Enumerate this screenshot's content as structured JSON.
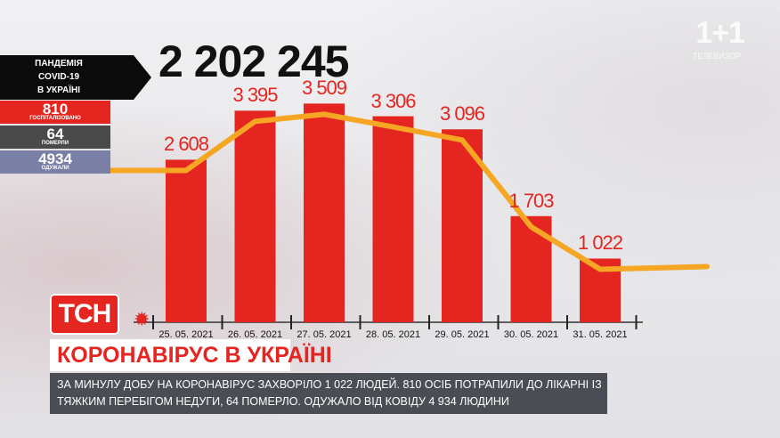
{
  "total_cases": "2 202 245",
  "logo": {
    "main": "1+1",
    "sub": "ТЕЛЕВИЗОР"
  },
  "panel": {
    "title_lines": [
      "ПАНДЕМІЯ",
      "COVID-19",
      "В УКРАЇНІ"
    ],
    "hospitalized": {
      "value": "810",
      "label": "ГОСПІТАЛІЗОВАНО"
    },
    "deaths": {
      "value": "64",
      "label": "ПОМЕРЛИ"
    },
    "recovered": {
      "value": "4934",
      "label": "ОДУЖАЛИ"
    }
  },
  "channel_logo": "ТСН",
  "headline": "КОРОНАВІРУС В УКРАЇНІ",
  "ticker_text": "ЗА МИНУЛУ ДОБУ НА КОРОНАВІРУС ЗАХВОРІЛО 1 022 ЛЮДЕЙ. 810 ОСІБ ПОТРАПИЛИ ДО ЛІКАРНІ ІЗ ТЯЖКИМ ПЕРЕБІГОМ НЕДУГИ, 64 ПОМЕРЛО. ОДУЖАЛО ВІД КОВІДУ 4 934 ЛЮДИНИ",
  "chart_data": {
    "type": "bar",
    "categories": [
      "25. 05. 2021",
      "26. 05. 2021",
      "27. 05. 2021",
      "28. 05. 2021",
      "29. 05. 2021",
      "30. 05. 2021",
      "31. 05. 2021"
    ],
    "values": [
      2608,
      3395,
      3509,
      3306,
      3096,
      1703,
      1022
    ],
    "value_labels": [
      "2 608",
      "3 395",
      "3 509",
      "3 306",
      "3 096",
      "1 703",
      "1 022"
    ],
    "title": "",
    "xlabel": "",
    "ylabel": "",
    "ylim": [
      0,
      3800
    ],
    "grid": false,
    "trend_line": true,
    "colors": {
      "bar": "#e52520",
      "trend": "#f5a623",
      "label": "#e52520"
    }
  }
}
